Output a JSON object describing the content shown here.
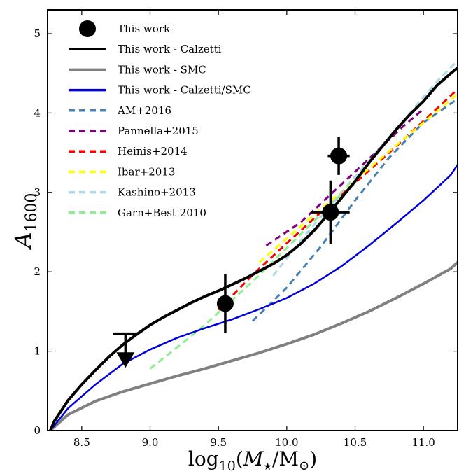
{
  "chart_data": {
    "type": "line",
    "xlim": [
      8.25,
      11.25
    ],
    "ylim": [
      0,
      5.3
    ],
    "x_ticks": [
      "8.5",
      "9.0",
      "9.5",
      "10.0",
      "10.5",
      "11.0"
    ],
    "y_ticks": [
      "0",
      "1",
      "2",
      "3",
      "4",
      "5"
    ],
    "xlabel_parts": [
      "log",
      "10",
      "(",
      "M",
      "★",
      "/M",
      "⊙",
      ")"
    ],
    "ylabel_parts": [
      "A",
      "1600"
    ],
    "grid": false,
    "legend_position": "top-left",
    "points": {
      "name": "This work",
      "color": "#000000",
      "data": [
        {
          "x": 9.55,
          "y": 1.6,
          "xerr": 0.0,
          "yerr": 0.37
        },
        {
          "x": 10.32,
          "y": 2.75,
          "xerr": 0.14,
          "yerr": 0.4
        },
        {
          "x": 10.38,
          "y": 3.46,
          "xerr": 0.08,
          "yerr": 0.24
        }
      ]
    },
    "upper_limit": {
      "x": 8.82,
      "y": 1.22,
      "arrow_to": 0.88
    },
    "series": [
      {
        "name": "This work - Calzetti",
        "color": "#000000",
        "dash": "solid",
        "width": 4,
        "x": [
          8.27,
          8.3,
          8.4,
          8.5,
          8.6,
          8.7,
          8.8,
          8.9,
          9.0,
          9.1,
          9.2,
          9.3,
          9.4,
          9.5,
          9.6,
          9.7,
          9.8,
          9.9,
          10.0,
          10.1,
          10.2,
          10.3,
          10.4,
          10.5,
          10.6,
          10.7,
          10.8,
          10.9,
          11.0,
          11.1,
          11.2,
          11.25
        ],
        "y": [
          0,
          0.12,
          0.38,
          0.58,
          0.76,
          0.93,
          1.08,
          1.21,
          1.33,
          1.43,
          1.52,
          1.61,
          1.69,
          1.76,
          1.84,
          1.92,
          2.01,
          2.1,
          2.21,
          2.35,
          2.52,
          2.72,
          2.93,
          3.14,
          3.37,
          3.58,
          3.79,
          3.98,
          4.15,
          4.35,
          4.5,
          4.57
        ]
      },
      {
        "name": "This work - SMC",
        "color": "#808080",
        "dash": "solid",
        "width": 4,
        "x": [
          8.27,
          8.4,
          8.6,
          8.8,
          9.0,
          9.2,
          9.4,
          9.6,
          9.8,
          10.0,
          10.2,
          10.4,
          10.6,
          10.8,
          11.0,
          11.2,
          11.25
        ],
        "y": [
          0,
          0.2,
          0.37,
          0.49,
          0.59,
          0.69,
          0.78,
          0.88,
          0.98,
          1.09,
          1.21,
          1.35,
          1.5,
          1.67,
          1.85,
          2.04,
          2.12
        ]
      },
      {
        "name": "This work - Calzetti/SMC",
        "color": "#0000dd",
        "dash": "solid",
        "width": 2.5,
        "x": [
          8.27,
          8.4,
          8.6,
          8.8,
          9.0,
          9.2,
          9.4,
          9.6,
          9.8,
          10.0,
          10.2,
          10.4,
          10.6,
          10.8,
          11.0,
          11.2,
          11.25
        ],
        "y": [
          0,
          0.28,
          0.58,
          0.84,
          1.02,
          1.17,
          1.29,
          1.4,
          1.53,
          1.67,
          1.85,
          2.07,
          2.33,
          2.61,
          2.9,
          3.22,
          3.35
        ]
      },
      {
        "name": "AM+2016",
        "color": "#4682b4",
        "dash": "dashed",
        "width": 3,
        "x": [
          9.75,
          10.0,
          10.25,
          10.5,
          10.75,
          11.0,
          11.25
        ],
        "y": [
          1.38,
          1.8,
          2.32,
          2.9,
          3.44,
          3.88,
          4.18
        ]
      },
      {
        "name": "Pannella+2015",
        "color": "#800080",
        "dash": "dashed",
        "width": 3,
        "x": [
          9.85,
          10.1,
          10.35,
          10.6,
          10.85,
          11.0
        ],
        "y": [
          2.33,
          2.62,
          3.02,
          3.42,
          3.83,
          4.05
        ]
      },
      {
        "name": "Heinis+2014",
        "color": "#ff0000",
        "dash": "dashed",
        "width": 3,
        "x": [
          9.5,
          9.75,
          10.0,
          10.25,
          10.5,
          10.75,
          11.0,
          11.25
        ],
        "y": [
          1.52,
          1.96,
          2.36,
          2.75,
          3.12,
          3.5,
          3.9,
          4.3
        ]
      },
      {
        "name": "Ibar+2013",
        "color": "#ffff00",
        "dash": "dashed",
        "width": 3,
        "x": [
          9.8,
          10.0,
          10.25,
          10.5,
          10.75,
          11.0,
          11.25
        ],
        "y": [
          2.12,
          2.42,
          2.79,
          3.15,
          3.52,
          3.88,
          4.24
        ]
      },
      {
        "name": "Kashino+2013",
        "color": "#add8e6",
        "dash": "dashed",
        "width": 3,
        "x": [
          9.9,
          10.1,
          10.35,
          10.6,
          10.85,
          11.1,
          11.25
        ],
        "y": [
          1.95,
          2.39,
          2.9,
          3.4,
          3.9,
          4.4,
          4.66
        ]
      },
      {
        "name": "Garn+Best 2010",
        "color": "#90ee90",
        "dash": "dashed",
        "width": 3,
        "x": [
          9.0,
          9.2,
          9.4,
          9.6,
          9.8,
          10.0,
          10.2,
          10.4
        ],
        "y": [
          0.78,
          1.05,
          1.33,
          1.64,
          1.96,
          2.3,
          2.64,
          2.98
        ]
      }
    ]
  }
}
